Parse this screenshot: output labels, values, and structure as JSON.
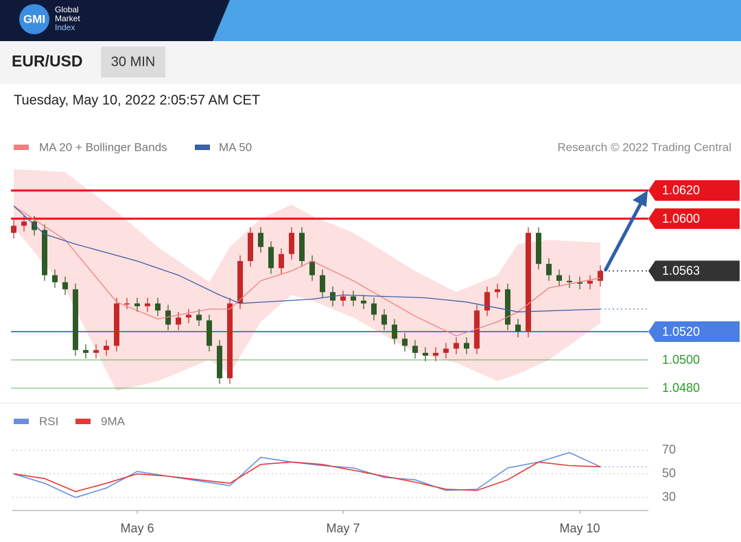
{
  "header": {
    "logo": "GMI",
    "brand": [
      "Global",
      "Market",
      "Index"
    ]
  },
  "symbol": "EUR/USD",
  "interval": "30 MIN",
  "timestamp": "Tuesday, May 10, 2022 2:05:57 AM CET",
  "chart_data": [
    {
      "type": "candlestick",
      "credit": "Research © 2022 Trading Central",
      "up_color": "#c62828",
      "down_color": "#2e5a27",
      "xlim": [
        0,
        62
      ],
      "ylim": [
        1.0471,
        1.0636
      ],
      "x": [
        0,
        1,
        2,
        3,
        4,
        5,
        6,
        7,
        8,
        9,
        10,
        11,
        12,
        13,
        14,
        15,
        16,
        17,
        18,
        19,
        20,
        21,
        22,
        23,
        24,
        25,
        26,
        27,
        28,
        29,
        30,
        31,
        32,
        33,
        34,
        35,
        36,
        37,
        38,
        39,
        40,
        41,
        42,
        43,
        44,
        45,
        46,
        47,
        48,
        49,
        50,
        51,
        52,
        53,
        54,
        55,
        56,
        57
      ],
      "open": [
        1.059,
        1.0595,
        1.0598,
        1.0592,
        1.056,
        1.0555,
        1.055,
        1.0507,
        1.0505,
        1.0507,
        1.051,
        1.054,
        1.054,
        1.0538,
        1.054,
        1.0535,
        1.0525,
        1.053,
        1.0532,
        1.0528,
        1.051,
        1.0487,
        1.054,
        1.057,
        1.059,
        1.058,
        1.0565,
        1.0575,
        1.059,
        1.057,
        1.056,
        1.0548,
        1.0542,
        1.0545,
        1.0542,
        1.054,
        1.0532,
        1.0525,
        1.0515,
        1.051,
        1.0505,
        1.0503,
        1.0505,
        1.0508,
        1.0512,
        1.0508,
        1.0535,
        1.0548,
        1.055,
        1.0525,
        1.052,
        1.059,
        1.0568,
        1.056,
        1.0556,
        1.0555,
        1.0554,
        1.0556
      ],
      "high": [
        1.0599,
        1.0602,
        1.0602,
        1.0596,
        1.0564,
        1.0559,
        1.0554,
        1.0511,
        1.0511,
        1.0514,
        1.0544,
        1.0544,
        1.0544,
        1.0544,
        1.0544,
        1.0539,
        1.0534,
        1.0536,
        1.0536,
        1.0532,
        1.0514,
        1.0544,
        1.0574,
        1.0594,
        1.0594,
        1.0584,
        1.0579,
        1.0594,
        1.0594,
        1.0574,
        1.0564,
        1.0552,
        1.0549,
        1.0549,
        1.0546,
        1.0544,
        1.0536,
        1.0529,
        1.0519,
        1.0514,
        1.0509,
        1.0509,
        1.0512,
        1.0516,
        1.0516,
        1.0539,
        1.0552,
        1.0554,
        1.0554,
        1.0529,
        1.0594,
        1.0594,
        1.0572,
        1.0564,
        1.056,
        1.0559,
        1.056,
        1.0567
      ],
      "low": [
        1.0586,
        1.0591,
        1.0588,
        1.0556,
        1.0551,
        1.0546,
        1.0503,
        1.0501,
        1.0501,
        1.0503,
        1.0506,
        1.0536,
        1.0534,
        1.0534,
        1.0531,
        1.0521,
        1.0521,
        1.0526,
        1.0524,
        1.0506,
        1.0483,
        1.0483,
        1.0536,
        1.0566,
        1.0576,
        1.0561,
        1.0561,
        1.0571,
        1.0566,
        1.0556,
        1.0544,
        1.0538,
        1.0538,
        1.0538,
        1.0536,
        1.0528,
        1.0521,
        1.0511,
        1.0506,
        1.0501,
        1.0499,
        1.0499,
        1.0501,
        1.0504,
        1.0504,
        1.0504,
        1.0531,
        1.0544,
        1.0521,
        1.0516,
        1.0516,
        1.0564,
        1.0556,
        1.0552,
        1.0551,
        1.055,
        1.055,
        1.0552
      ],
      "close": [
        1.0595,
        1.0598,
        1.0592,
        1.056,
        1.0555,
        1.055,
        1.0507,
        1.0505,
        1.0507,
        1.051,
        1.054,
        1.054,
        1.0538,
        1.054,
        1.0535,
        1.0525,
        1.053,
        1.0532,
        1.0528,
        1.051,
        1.0487,
        1.054,
        1.057,
        1.059,
        1.058,
        1.0565,
        1.0575,
        1.059,
        1.057,
        1.056,
        1.0548,
        1.0542,
        1.0545,
        1.0542,
        1.054,
        1.0532,
        1.0525,
        1.0515,
        1.051,
        1.0505,
        1.0503,
        1.0505,
        1.0508,
        1.0512,
        1.0508,
        1.0535,
        1.0548,
        1.055,
        1.0525,
        1.052,
        1.059,
        1.0568,
        1.056,
        1.0556,
        1.0555,
        1.0554,
        1.0556,
        1.0563
      ],
      "series": [
        {
          "name": "MA 20 + Bollinger Bands",
          "color": "#f08080",
          "band_color": "#fde0e0",
          "x": [
            0,
            5,
            10,
            14,
            19,
            21,
            24,
            27,
            29,
            33,
            39,
            43,
            47,
            49,
            52,
            57
          ],
          "values": [
            1.0609,
            1.0585,
            1.0541,
            1.0529,
            1.0536,
            1.0536,
            1.0556,
            1.0563,
            1.057,
            1.0556,
            1.0531,
            1.0517,
            1.0527,
            1.0534,
            1.0551,
            1.0558
          ],
          "upper": [
            1.0635,
            1.0633,
            1.0605,
            1.058,
            1.0555,
            1.058,
            1.06,
            1.061,
            1.0602,
            1.059,
            1.0563,
            1.0548,
            1.056,
            1.0582,
            1.0585,
            1.0583
          ],
          "lower": [
            1.0594,
            1.055,
            1.0478,
            1.0485,
            1.05,
            1.049,
            1.0527,
            1.0546,
            1.0542,
            1.053,
            1.0505,
            1.0498,
            1.0485,
            1.049,
            1.05,
            1.0526
          ]
        },
        {
          "name": "MA 50",
          "color": "#3b5fa8",
          "x": [
            0,
            3,
            6,
            12,
            16,
            20,
            22,
            29,
            32,
            40,
            44,
            49,
            57
          ],
          "values": [
            1.0609,
            1.0589,
            1.0582,
            1.057,
            1.056,
            1.0546,
            1.054,
            1.0543,
            1.0546,
            1.0544,
            1.0541,
            1.0534,
            1.0536
          ]
        }
      ],
      "levels": [
        {
          "value": 1.062,
          "label": "1.0620",
          "color": "#e8141b",
          "boxed": true,
          "line": "solid"
        },
        {
          "value": 1.06,
          "label": "1.0600",
          "color": "#e8141b",
          "boxed": true,
          "line": "solid"
        },
        {
          "value": 1.0563,
          "label": "1.0563",
          "color": "#333333",
          "boxed": true,
          "line": "dotted"
        },
        {
          "value": 1.052,
          "label": "1.0520",
          "color": "#4a7ee0",
          "boxed": true,
          "line": "solid"
        },
        {
          "value": 1.05,
          "label": "1.0500",
          "color": "#2e9a2e",
          "boxed": false,
          "line": "solid"
        },
        {
          "value": 1.048,
          "label": "1.0480",
          "color": "#2e9a2e",
          "boxed": false,
          "line": "solid"
        }
      ]
    },
    {
      "type": "line",
      "xlim": [
        0,
        62
      ],
      "ylim": [
        19,
        77
      ],
      "yticks": [
        30,
        50,
        70
      ],
      "grid": true,
      "xticks": [
        {
          "value": 12,
          "label": "May 6"
        },
        {
          "value": 32,
          "label": "May 7"
        },
        {
          "value": 55,
          "label": "May 10"
        }
      ],
      "series": [
        {
          "name": "RSI",
          "color": "#6a8fe0",
          "x": [
            0,
            3,
            6,
            9,
            12,
            15,
            18,
            21,
            24,
            27,
            30,
            33,
            36,
            39,
            42,
            45,
            48,
            51,
            54,
            57
          ],
          "values": [
            50,
            42,
            30,
            38,
            52,
            48,
            44,
            40,
            64,
            60,
            57,
            55,
            47,
            45,
            36,
            37,
            55,
            60,
            68,
            56
          ]
        },
        {
          "name": "9MA",
          "color": "#e53935",
          "x": [
            0,
            3,
            6,
            9,
            12,
            15,
            18,
            21,
            24,
            27,
            30,
            33,
            36,
            39,
            42,
            45,
            48,
            51,
            54,
            57
          ],
          "values": [
            50,
            46,
            35,
            42,
            50,
            48,
            45,
            42,
            58,
            60,
            58,
            53,
            48,
            43,
            37,
            36,
            45,
            60,
            57,
            56
          ]
        }
      ]
    }
  ]
}
